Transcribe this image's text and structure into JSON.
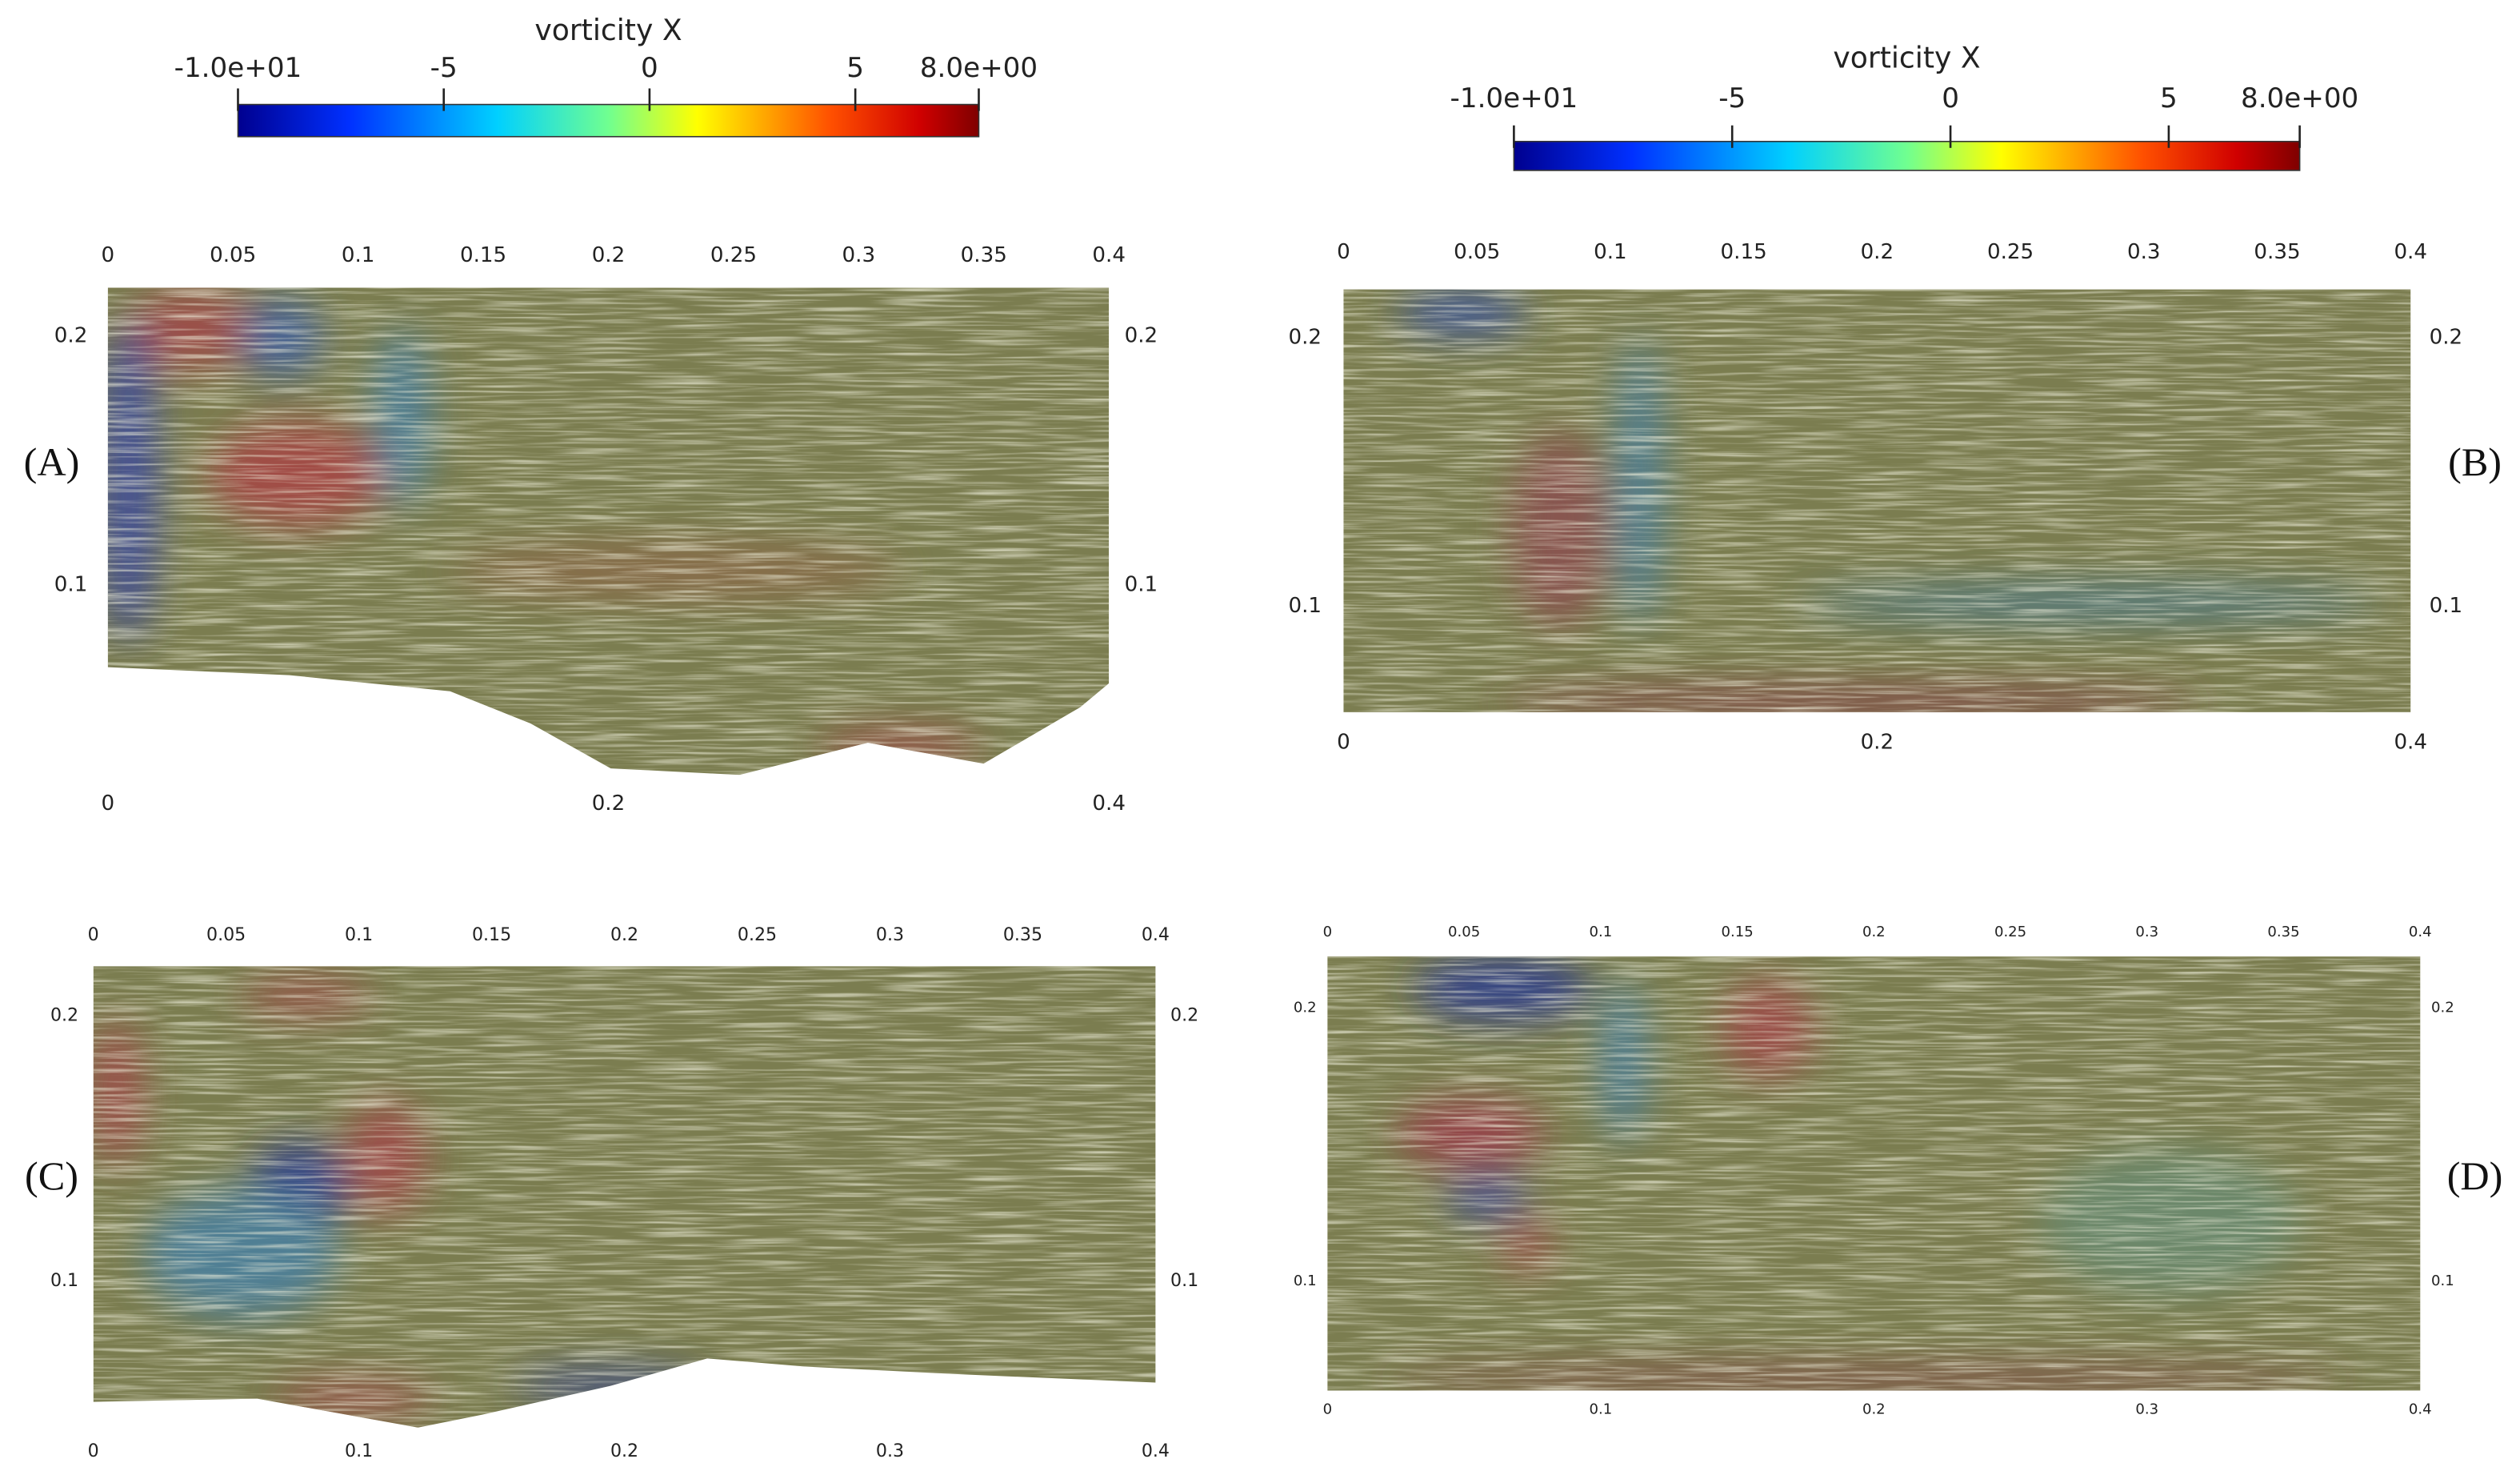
{
  "colorbars": [
    {
      "title": "vorticity X",
      "ticks": [
        {
          "value": -10,
          "label": "-1.0e+01"
        },
        -5,
        0,
        5,
        {
          "value": 8,
          "label": "8.0e+00"
        }
      ]
    },
    {
      "title": "vorticity X",
      "ticks": [
        {
          "value": -10,
          "label": "-1.0e+01"
        },
        -5,
        0,
        5,
        {
          "value": 8,
          "label": "8.0e+00"
        }
      ]
    }
  ],
  "panels": [
    {
      "label": "(A)",
      "top_ticks": [
        0,
        0.05,
        0.1,
        0.15,
        0.2,
        0.25,
        0.3,
        0.35,
        0.4
      ],
      "side_ticks": [
        0.1,
        0.2
      ],
      "bottom_ticks": [
        0,
        0.2,
        0.4
      ]
    },
    {
      "label": "(B)",
      "top_ticks": [
        0,
        0.05,
        0.1,
        0.15,
        0.2,
        0.25,
        0.3,
        0.35,
        0.4
      ],
      "side_ticks": [
        0.1,
        0.2
      ],
      "bottom_ticks": [
        0,
        0.2,
        0.4
      ]
    },
    {
      "label": "(C)",
      "top_ticks": [
        0,
        0.05,
        0.1,
        0.15,
        0.2,
        0.25,
        0.3,
        0.35,
        0.4
      ],
      "side_ticks": [
        0.1,
        0.2
      ],
      "bottom_ticks": [
        0,
        0.1,
        0.2,
        0.3,
        0.4
      ]
    },
    {
      "label": "(D)",
      "top_ticks": [
        0,
        0.05,
        0.1,
        0.15,
        0.2,
        0.25,
        0.3,
        0.35,
        0.4
      ],
      "side_ticks": [
        0.1,
        0.2
      ],
      "bottom_ticks": [
        0,
        0.1,
        0.2,
        0.3,
        0.4
      ]
    }
  ]
}
